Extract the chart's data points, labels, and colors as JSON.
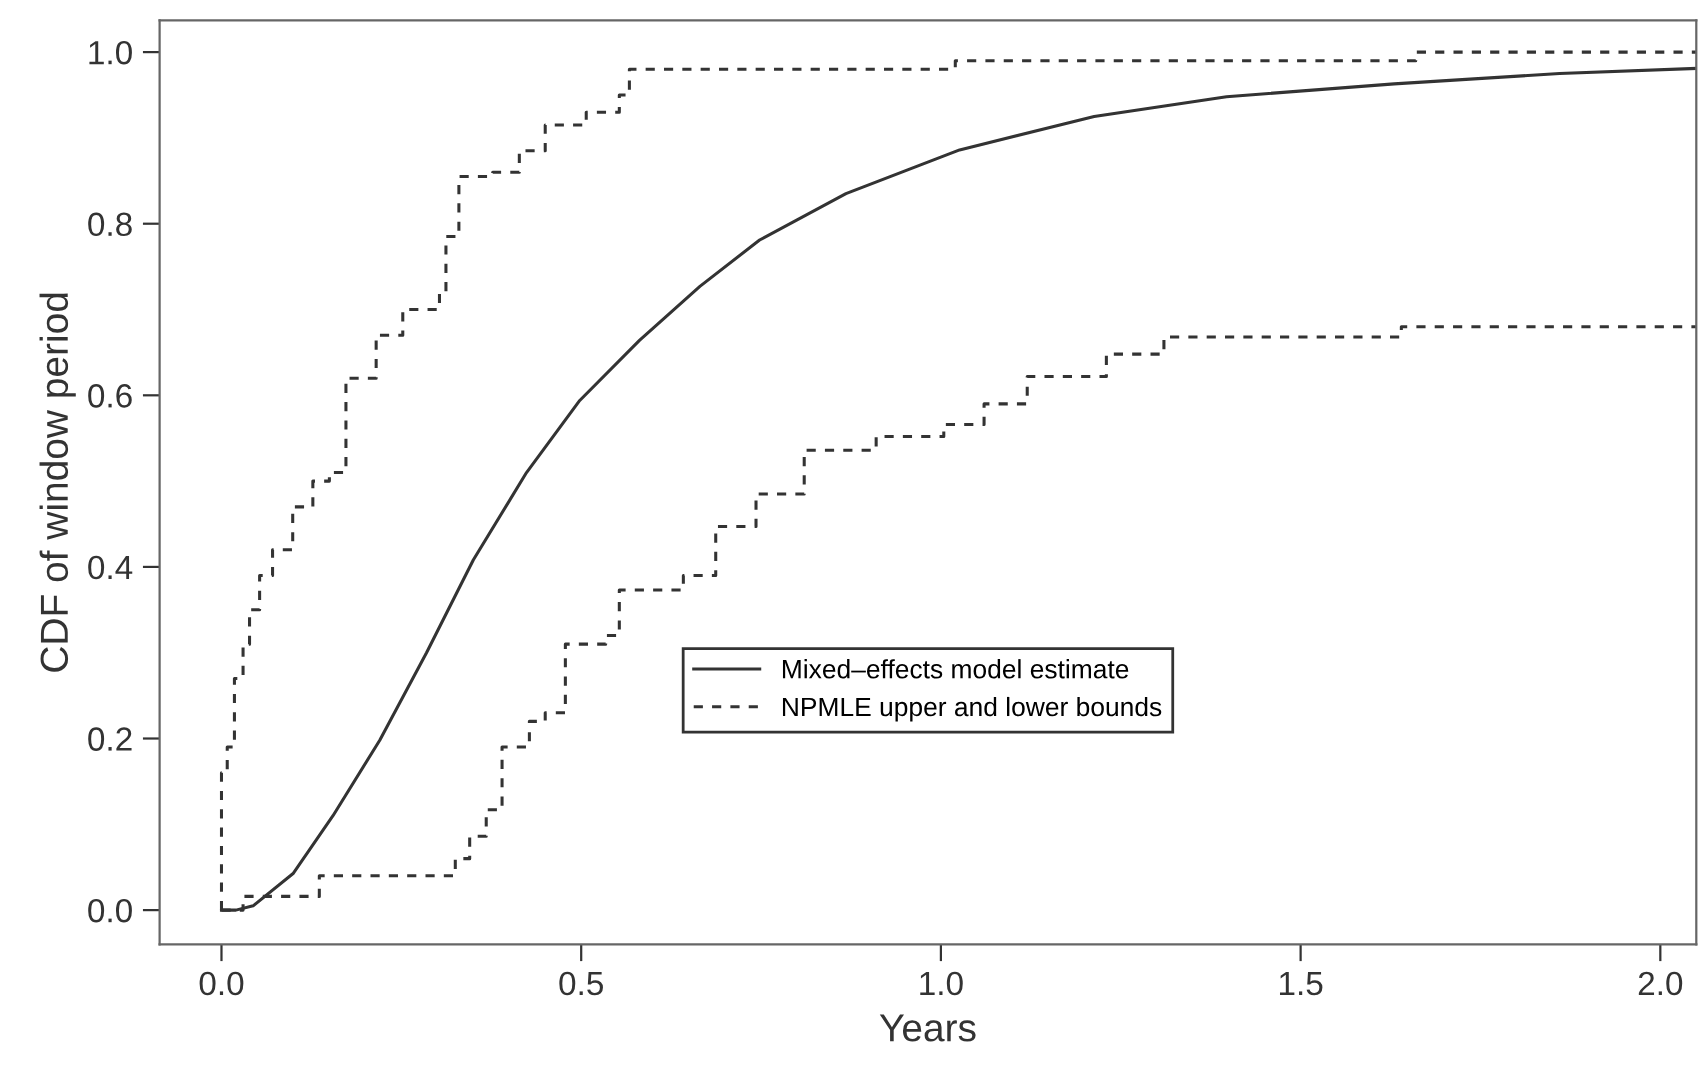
{
  "chart_data": {
    "type": "line",
    "xlabel": "Years",
    "ylabel": "CDF of window period",
    "xlim": [
      -0.086,
      2.05
    ],
    "ylim": [
      -0.04,
      1.037
    ],
    "xticks": [
      {
        "value": 0,
        "label": "0.0"
      },
      0.5,
      {
        "value": 1,
        "label": "1.0"
      },
      1.5,
      {
        "value": 2,
        "label": "2.0"
      }
    ],
    "yticks": [
      {
        "value": 0,
        "label": "0.0"
      },
      0.2,
      0.4,
      0.6,
      0.8,
      {
        "value": 1,
        "label": "1.0"
      }
    ],
    "grid": false,
    "legend": "center",
    "marker": "none",
    "series": [
      {
        "name": "Mixed–effects model estimate",
        "line_style": "solid",
        "color": "#333333",
        "x": [
          0,
          0.02,
          0.044,
          0.1,
          0.155,
          0.22,
          0.285,
          0.35,
          0.424,
          0.498,
          0.581,
          0.665,
          0.748,
          0.868,
          1.026,
          1.213,
          1.397,
          1.63,
          1.86,
          2.05
        ],
        "values": [
          0,
          0,
          0.005,
          0.043,
          0.11,
          0.198,
          0.3,
          0.408,
          0.51,
          0.594,
          0.664,
          0.727,
          0.781,
          0.835,
          0.886,
          0.925,
          0.948,
          0.963,
          0.975,
          0.981
        ]
      },
      {
        "name": "NPMLE upper and lower bounds",
        "type": "step",
        "line_style": "dashed",
        "color": "#333333",
        "x": [
          0,
          0,
          0.008,
          0.018,
          0.03,
          0.039,
          0.053,
          0.071,
          0.099,
          0.127,
          0.15,
          0.173,
          0.215,
          0.252,
          0.303,
          0.312,
          0.33,
          0.377,
          0.414,
          0.45,
          0.507,
          0.553,
          0.567,
          1.02,
          1.66,
          2.05
        ],
        "values": [
          0,
          0.16,
          0.19,
          0.27,
          0.31,
          0.35,
          0.39,
          0.42,
          0.47,
          0.5,
          0.51,
          0.62,
          0.67,
          0.7,
          0.72,
          0.785,
          0.855,
          0.86,
          0.885,
          0.915,
          0.93,
          0.95,
          0.98,
          0.99,
          1.0,
          1.0
        ]
      },
      {
        "type": "step",
        "line_style": "dashed",
        "color": "#333333",
        "x": [
          0,
          0.03,
          0.136,
          0.325,
          0.345,
          0.368,
          0.39,
          0.428,
          0.45,
          0.478,
          0.534,
          0.553,
          0.642,
          0.687,
          0.743,
          0.81,
          0.91,
          1.004,
          1.06,
          1.12,
          1.23,
          1.31,
          1.64,
          2.05
        ],
        "values": [
          0,
          0.016,
          0.04,
          0.06,
          0.086,
          0.117,
          0.19,
          0.22,
          0.23,
          0.31,
          0.32,
          0.373,
          0.39,
          0.447,
          0.485,
          0.536,
          0.552,
          0.566,
          0.59,
          0.622,
          0.648,
          0.668,
          0.68,
          0.68
        ]
      }
    ]
  }
}
